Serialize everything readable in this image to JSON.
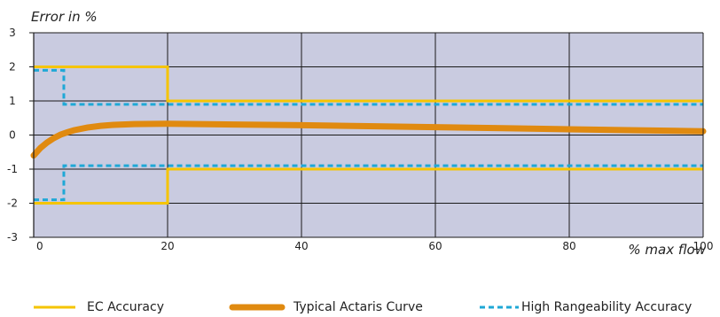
{
  "chart_data": {
    "type": "line",
    "ylabel": "Error in %",
    "xlabel": "% max flow",
    "xlim": [
      0,
      100
    ],
    "ylim": [
      -3,
      3
    ],
    "xticks": [
      "0",
      "20",
      "40",
      "60",
      "80",
      "100"
    ],
    "yticks": [
      "3",
      "2",
      "1",
      "0",
      "-1",
      "-2",
      "-3"
    ],
    "grid": true,
    "legend_position": "bottom",
    "colors": {
      "background": "#c9cbe0",
      "grid": "#1a1a1a",
      "ec_accuracy": "#f5c400",
      "typical_curve": "#e08a10",
      "high_rangeability": "#1fa8d6"
    },
    "series": [
      {
        "name": "EC Accuracy",
        "style": "solid-thin",
        "lines": [
          {
            "x": [
              0,
              20,
              20,
              100
            ],
            "y": [
              2,
              2,
              1,
              1
            ]
          },
          {
            "x": [
              0,
              20,
              20,
              100
            ],
            "y": [
              -2,
              -2,
              -1,
              -1
            ]
          }
        ]
      },
      {
        "name": "Typical Actaris Curve",
        "style": "solid-thick",
        "lines": [
          {
            "x": [
              0,
              1,
              2,
              3,
              4,
              5,
              6,
              8,
              10,
              12,
              15,
              20,
              30,
              40,
              50,
              60,
              70,
              80,
              90,
              100
            ],
            "y": [
              -0.6,
              -0.38,
              -0.22,
              -0.09,
              0.01,
              0.08,
              0.14,
              0.22,
              0.27,
              0.3,
              0.32,
              0.33,
              0.31,
              0.29,
              0.26,
              0.23,
              0.2,
              0.17,
              0.14,
              0.11
            ]
          }
        ]
      },
      {
        "name": "High Rangeability Accuracy",
        "style": "dashed",
        "lines": [
          {
            "x": [
              0,
              4.5,
              4.5,
              100
            ],
            "y": [
              1.9,
              1.9,
              0.9,
              0.9
            ]
          },
          {
            "x": [
              0,
              4.5,
              4.5,
              100
            ],
            "y": [
              -1.9,
              -1.9,
              -0.9,
              -0.9
            ]
          }
        ]
      }
    ]
  }
}
